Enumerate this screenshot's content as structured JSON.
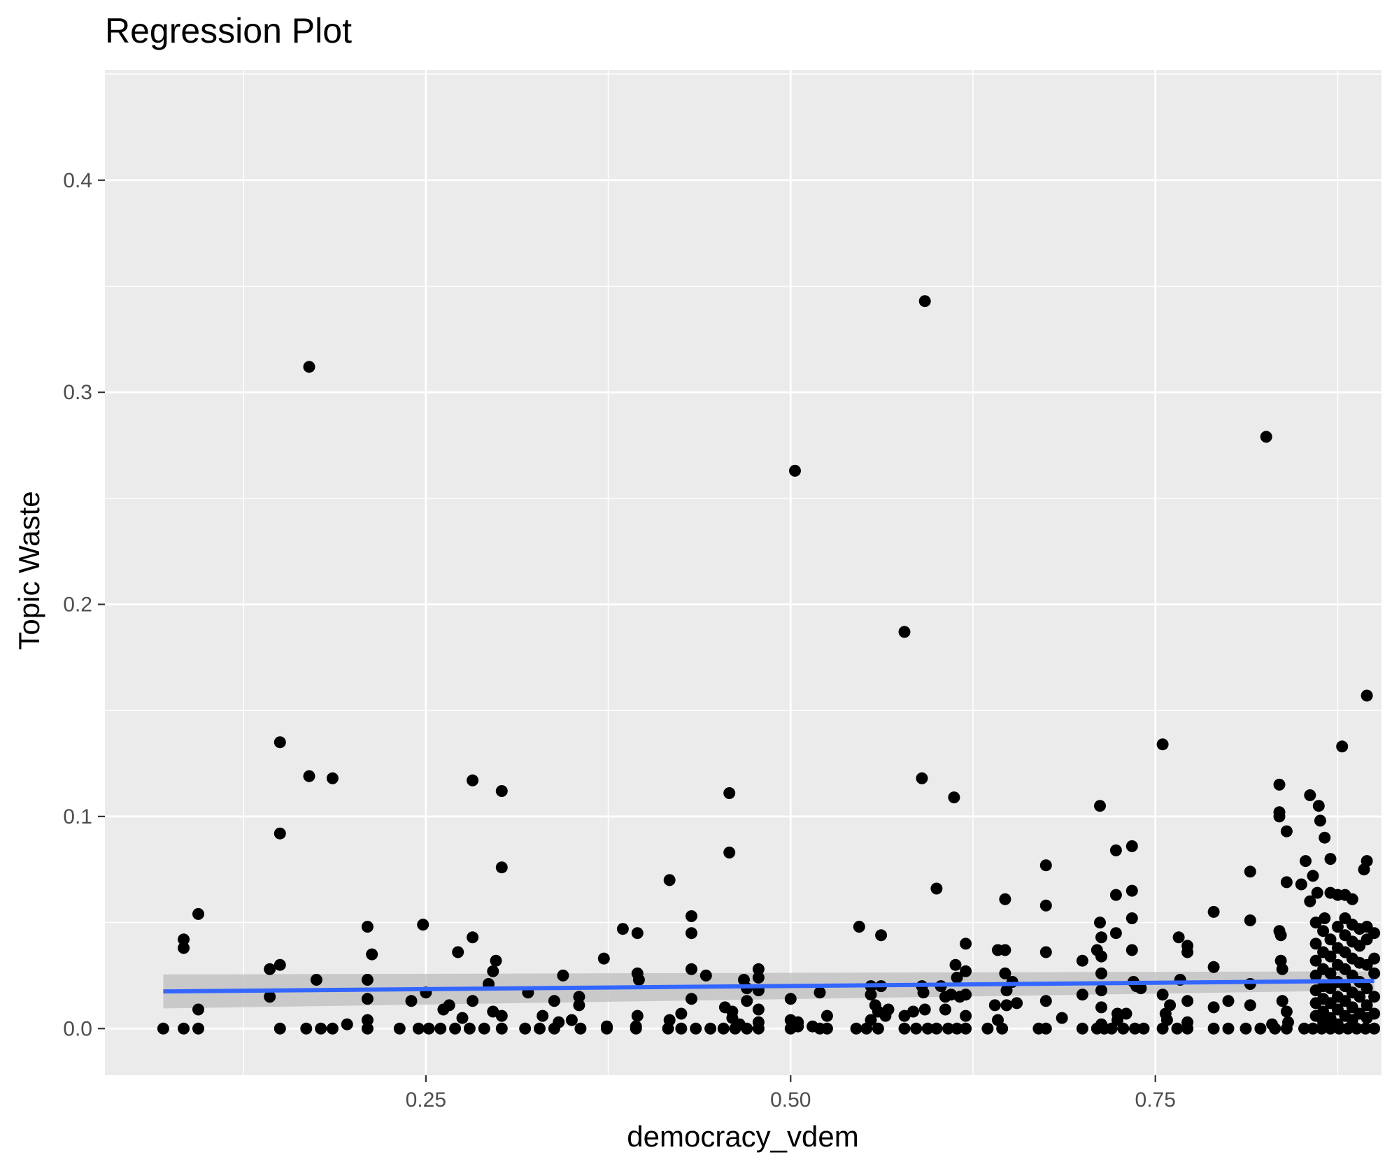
{
  "chart_data": {
    "type": "scatter",
    "title": "Regression Plot",
    "xlabel": "democracy_vdem",
    "ylabel": "Topic Waste",
    "xlim": [
      0.03,
      0.905
    ],
    "ylim": [
      -0.022,
      0.452
    ],
    "x_ticks": [
      0.25,
      0.5,
      0.75
    ],
    "x_tick_labels": [
      "0.25",
      "0.50",
      "0.75"
    ],
    "y_ticks": [
      0.0,
      0.1,
      0.2,
      0.3,
      0.4
    ],
    "y_tick_labels": [
      "0.0",
      "0.1",
      "0.2",
      "0.3",
      "0.4"
    ],
    "grid": true,
    "legend": "none",
    "colors": {
      "panel_background": "#ebebeb",
      "gridline": "#ffffff",
      "points": "#000000",
      "regression_line": "#3366ff",
      "confidence_band": "#bdbdbd"
    },
    "regression": {
      "x": [
        0.07,
        0.9
      ],
      "y": [
        0.0175,
        0.0225
      ],
      "ci_lower": [
        0.0095,
        0.018
      ],
      "ci_upper": [
        0.0255,
        0.027
      ]
    },
    "points": [
      [
        0.07,
        0.0
      ],
      [
        0.084,
        0.042
      ],
      [
        0.084,
        0.038
      ],
      [
        0.084,
        0.0
      ],
      [
        0.094,
        0.054
      ],
      [
        0.094,
        0.009
      ],
      [
        0.094,
        0.0
      ],
      [
        0.143,
        0.028
      ],
      [
        0.143,
        0.015
      ],
      [
        0.15,
        0.135
      ],
      [
        0.15,
        0.092
      ],
      [
        0.15,
        0.03
      ],
      [
        0.15,
        0.0
      ],
      [
        0.17,
        0.312
      ],
      [
        0.17,
        0.119
      ],
      [
        0.175,
        0.023
      ],
      [
        0.168,
        0.0
      ],
      [
        0.178,
        0.0
      ],
      [
        0.186,
        0.118
      ],
      [
        0.186,
        0.0
      ],
      [
        0.196,
        0.002
      ],
      [
        0.21,
        0.048
      ],
      [
        0.21,
        0.023
      ],
      [
        0.21,
        0.014
      ],
      [
        0.21,
        0.004
      ],
      [
        0.213,
        0.035
      ],
      [
        0.21,
        0.0
      ],
      [
        0.248,
        0.049
      ],
      [
        0.25,
        0.017
      ],
      [
        0.24,
        0.013
      ],
      [
        0.232,
        0.0
      ],
      [
        0.245,
        0.0
      ],
      [
        0.252,
        0.0
      ],
      [
        0.262,
        0.009
      ],
      [
        0.266,
        0.011
      ],
      [
        0.272,
        0.036
      ],
      [
        0.275,
        0.005
      ],
      [
        0.282,
        0.117
      ],
      [
        0.282,
        0.043
      ],
      [
        0.282,
        0.013
      ],
      [
        0.26,
        0.0
      ],
      [
        0.27,
        0.0
      ],
      [
        0.28,
        0.0
      ],
      [
        0.29,
        0.0
      ],
      [
        0.293,
        0.021
      ],
      [
        0.296,
        0.027
      ],
      [
        0.298,
        0.032
      ],
      [
        0.296,
        0.008
      ],
      [
        0.302,
        0.112
      ],
      [
        0.302,
        0.076
      ],
      [
        0.302,
        0.006
      ],
      [
        0.302,
        0.0
      ],
      [
        0.32,
        0.017
      ],
      [
        0.33,
        0.006
      ],
      [
        0.338,
        0.013
      ],
      [
        0.341,
        0.003
      ],
      [
        0.344,
        0.025
      ],
      [
        0.318,
        0.0
      ],
      [
        0.328,
        0.0
      ],
      [
        0.338,
        0.0
      ],
      [
        0.35,
        0.004
      ],
      [
        0.355,
        0.015
      ],
      [
        0.355,
        0.011
      ],
      [
        0.372,
        0.033
      ],
      [
        0.374,
        0.0
      ],
      [
        0.374,
        0.001
      ],
      [
        0.356,
        0.0
      ],
      [
        0.385,
        0.047
      ],
      [
        0.395,
        0.045
      ],
      [
        0.395,
        0.026
      ],
      [
        0.396,
        0.023
      ],
      [
        0.395,
        0.006
      ],
      [
        0.394,
        0.0
      ],
      [
        0.394,
        0.001
      ],
      [
        0.417,
        0.07
      ],
      [
        0.417,
        0.004
      ],
      [
        0.425,
        0.007
      ],
      [
        0.432,
        0.053
      ],
      [
        0.432,
        0.045
      ],
      [
        0.432,
        0.028
      ],
      [
        0.432,
        0.014
      ],
      [
        0.442,
        0.025
      ],
      [
        0.416,
        0.0
      ],
      [
        0.425,
        0.0
      ],
      [
        0.435,
        0.0
      ],
      [
        0.445,
        0.0
      ],
      [
        0.455,
        0.01
      ],
      [
        0.458,
        0.111
      ],
      [
        0.458,
        0.083
      ],
      [
        0.46,
        0.008
      ],
      [
        0.46,
        0.005
      ],
      [
        0.465,
        0.002
      ],
      [
        0.468,
        0.023
      ],
      [
        0.47,
        0.019
      ],
      [
        0.47,
        0.013
      ],
      [
        0.454,
        0.0
      ],
      [
        0.462,
        0.0
      ],
      [
        0.47,
        0.0
      ],
      [
        0.478,
        0.028
      ],
      [
        0.478,
        0.024
      ],
      [
        0.478,
        0.018
      ],
      [
        0.478,
        0.009
      ],
      [
        0.478,
        0.003
      ],
      [
        0.478,
        0.0
      ],
      [
        0.5,
        0.014
      ],
      [
        0.5,
        0.004
      ],
      [
        0.503,
        0.263
      ],
      [
        0.505,
        0.003
      ],
      [
        0.5,
        0.0
      ],
      [
        0.505,
        0.001
      ],
      [
        0.515,
        0.001
      ],
      [
        0.52,
        0.017
      ],
      [
        0.525,
        0.006
      ],
      [
        0.52,
        0.0
      ],
      [
        0.525,
        0.0
      ],
      [
        0.547,
        0.048
      ],
      [
        0.555,
        0.02
      ],
      [
        0.555,
        0.016
      ],
      [
        0.555,
        0.004
      ],
      [
        0.558,
        0.011
      ],
      [
        0.56,
        0.008
      ],
      [
        0.562,
        0.044
      ],
      [
        0.562,
        0.02
      ],
      [
        0.565,
        0.006
      ],
      [
        0.567,
        0.009
      ],
      [
        0.545,
        0.0
      ],
      [
        0.552,
        0.0
      ],
      [
        0.56,
        0.0
      ],
      [
        0.578,
        0.187
      ],
      [
        0.578,
        0.006
      ],
      [
        0.584,
        0.008
      ],
      [
        0.59,
        0.118
      ],
      [
        0.59,
        0.02
      ],
      [
        0.591,
        0.017
      ],
      [
        0.592,
        0.343
      ],
      [
        0.592,
        0.009
      ],
      [
        0.578,
        0.0
      ],
      [
        0.586,
        0.0
      ],
      [
        0.594,
        0.0
      ],
      [
        0.6,
        0.066
      ],
      [
        0.603,
        0.02
      ],
      [
        0.606,
        0.015
      ],
      [
        0.606,
        0.009
      ],
      [
        0.61,
        0.016
      ],
      [
        0.612,
        0.109
      ],
      [
        0.613,
        0.03
      ],
      [
        0.614,
        0.024
      ],
      [
        0.616,
        0.015
      ],
      [
        0.6,
        0.0
      ],
      [
        0.608,
        0.0
      ],
      [
        0.614,
        0.0
      ],
      [
        0.62,
        0.04
      ],
      [
        0.62,
        0.027
      ],
      [
        0.62,
        0.016
      ],
      [
        0.62,
        0.006
      ],
      [
        0.62,
        0.0
      ],
      [
        0.64,
        0.011
      ],
      [
        0.642,
        0.037
      ],
      [
        0.642,
        0.004
      ],
      [
        0.647,
        0.061
      ],
      [
        0.647,
        0.037
      ],
      [
        0.647,
        0.026
      ],
      [
        0.648,
        0.018
      ],
      [
        0.648,
        0.011
      ],
      [
        0.652,
        0.022
      ],
      [
        0.655,
        0.012
      ],
      [
        0.635,
        0.0
      ],
      [
        0.645,
        0.0
      ],
      [
        0.67,
        0.0
      ],
      [
        0.675,
        0.077
      ],
      [
        0.675,
        0.058
      ],
      [
        0.675,
        0.036
      ],
      [
        0.675,
        0.013
      ],
      [
        0.675,
        0.0
      ],
      [
        0.686,
        0.005
      ],
      [
        0.7,
        0.032
      ],
      [
        0.7,
        0.016
      ],
      [
        0.71,
        0.037
      ],
      [
        0.712,
        0.105
      ],
      [
        0.712,
        0.05
      ],
      [
        0.713,
        0.043
      ],
      [
        0.713,
        0.034
      ],
      [
        0.713,
        0.026
      ],
      [
        0.713,
        0.018
      ],
      [
        0.713,
        0.01
      ],
      [
        0.713,
        0.002
      ],
      [
        0.7,
        0.0
      ],
      [
        0.71,
        0.0
      ],
      [
        0.715,
        0.0
      ],
      [
        0.723,
        0.084
      ],
      [
        0.723,
        0.063
      ],
      [
        0.723,
        0.045
      ],
      [
        0.724,
        0.007
      ],
      [
        0.724,
        0.004
      ],
      [
        0.73,
        0.007
      ],
      [
        0.734,
        0.086
      ],
      [
        0.734,
        0.065
      ],
      [
        0.734,
        0.052
      ],
      [
        0.734,
        0.037
      ],
      [
        0.735,
        0.022
      ],
      [
        0.737,
        0.02
      ],
      [
        0.74,
        0.019
      ],
      [
        0.72,
        0.0
      ],
      [
        0.728,
        0.0
      ],
      [
        0.736,
        0.0
      ],
      [
        0.742,
        0.0
      ],
      [
        0.755,
        0.134
      ],
      [
        0.755,
        0.016
      ],
      [
        0.757,
        0.007
      ],
      [
        0.758,
        0.004
      ],
      [
        0.76,
        0.011
      ],
      [
        0.766,
        0.043
      ],
      [
        0.767,
        0.023
      ],
      [
        0.772,
        0.039
      ],
      [
        0.772,
        0.036
      ],
      [
        0.772,
        0.013
      ],
      [
        0.772,
        0.003
      ],
      [
        0.755,
        0.0
      ],
      [
        0.765,
        0.0
      ],
      [
        0.772,
        0.0
      ],
      [
        0.79,
        0.055
      ],
      [
        0.79,
        0.029
      ],
      [
        0.79,
        0.01
      ],
      [
        0.8,
        0.013
      ],
      [
        0.79,
        0.0
      ],
      [
        0.8,
        0.0
      ],
      [
        0.815,
        0.074
      ],
      [
        0.815,
        0.051
      ],
      [
        0.815,
        0.021
      ],
      [
        0.815,
        0.011
      ],
      [
        0.826,
        0.279
      ],
      [
        0.812,
        0.0
      ],
      [
        0.822,
        0.0
      ],
      [
        0.835,
        0.115
      ],
      [
        0.835,
        0.102
      ],
      [
        0.835,
        0.1
      ],
      [
        0.835,
        0.046
      ],
      [
        0.836,
        0.044
      ],
      [
        0.836,
        0.032
      ],
      [
        0.837,
        0.028
      ],
      [
        0.837,
        0.013
      ],
      [
        0.84,
        0.069
      ],
      [
        0.84,
        0.093
      ],
      [
        0.84,
        0.008
      ],
      [
        0.841,
        0.003
      ],
      [
        0.83,
        0.002
      ],
      [
        0.832,
        0.0
      ],
      [
        0.84,
        0.0
      ],
      [
        0.85,
        0.068
      ],
      [
        0.853,
        0.079
      ],
      [
        0.856,
        0.11
      ],
      [
        0.856,
        0.06
      ],
      [
        0.858,
        0.072
      ],
      [
        0.861,
        0.064
      ],
      [
        0.862,
        0.105
      ],
      [
        0.863,
        0.098
      ],
      [
        0.866,
        0.09
      ],
      [
        0.866,
        0.052
      ],
      [
        0.87,
        0.08
      ],
      [
        0.87,
        0.064
      ],
      [
        0.86,
        0.05
      ],
      [
        0.86,
        0.04
      ],
      [
        0.86,
        0.032
      ],
      [
        0.86,
        0.025
      ],
      [
        0.86,
        0.018
      ],
      [
        0.86,
        0.012
      ],
      [
        0.86,
        0.006
      ],
      [
        0.865,
        0.046
      ],
      [
        0.865,
        0.036
      ],
      [
        0.865,
        0.028
      ],
      [
        0.865,
        0.02
      ],
      [
        0.865,
        0.014
      ],
      [
        0.865,
        0.008
      ],
      [
        0.865,
        0.003
      ],
      [
        0.87,
        0.042
      ],
      [
        0.87,
        0.034
      ],
      [
        0.87,
        0.026
      ],
      [
        0.87,
        0.019
      ],
      [
        0.87,
        0.012
      ],
      [
        0.87,
        0.005
      ],
      [
        0.875,
        0.063
      ],
      [
        0.875,
        0.048
      ],
      [
        0.875,
        0.038
      ],
      [
        0.875,
        0.03
      ],
      [
        0.875,
        0.022
      ],
      [
        0.875,
        0.015
      ],
      [
        0.875,
        0.009
      ],
      [
        0.875,
        0.002
      ],
      [
        0.878,
        0.133
      ],
      [
        0.88,
        0.063
      ],
      [
        0.88,
        0.052
      ],
      [
        0.88,
        0.044
      ],
      [
        0.88,
        0.036
      ],
      [
        0.88,
        0.028
      ],
      [
        0.88,
        0.02
      ],
      [
        0.88,
        0.013
      ],
      [
        0.88,
        0.006
      ],
      [
        0.885,
        0.061
      ],
      [
        0.885,
        0.049
      ],
      [
        0.885,
        0.041
      ],
      [
        0.885,
        0.033
      ],
      [
        0.885,
        0.025
      ],
      [
        0.885,
        0.017
      ],
      [
        0.885,
        0.01
      ],
      [
        0.885,
        0.004
      ],
      [
        0.89,
        0.047
      ],
      [
        0.89,
        0.039
      ],
      [
        0.89,
        0.031
      ],
      [
        0.89,
        0.022
      ],
      [
        0.89,
        0.015
      ],
      [
        0.89,
        0.007
      ],
      [
        0.895,
        0.157
      ],
      [
        0.895,
        0.079
      ],
      [
        0.893,
        0.075
      ],
      [
        0.895,
        0.048
      ],
      [
        0.895,
        0.042
      ],
      [
        0.895,
        0.03
      ],
      [
        0.895,
        0.019
      ],
      [
        0.895,
        0.011
      ],
      [
        0.895,
        0.005
      ],
      [
        0.9,
        0.045
      ],
      [
        0.9,
        0.033
      ],
      [
        0.9,
        0.026
      ],
      [
        0.9,
        0.015
      ],
      [
        0.9,
        0.007
      ],
      [
        0.852,
        0.0
      ],
      [
        0.858,
        0.0
      ],
      [
        0.864,
        0.0
      ],
      [
        0.87,
        0.0
      ],
      [
        0.876,
        0.0
      ],
      [
        0.882,
        0.0
      ],
      [
        0.888,
        0.0
      ],
      [
        0.894,
        0.0
      ],
      [
        0.9,
        0.0
      ]
    ]
  }
}
